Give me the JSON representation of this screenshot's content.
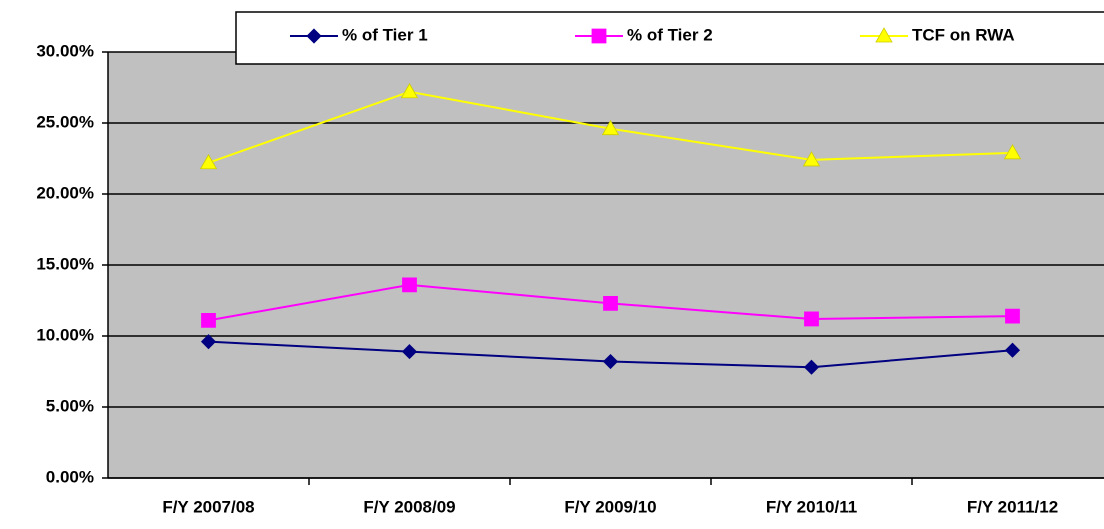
{
  "chart_data": {
    "type": "line",
    "categories": [
      "F/Y 2007/08",
      "F/Y 2008/09",
      "F/Y 2009/10",
      "F/Y 2010/11",
      "F/Y 2011/12"
    ],
    "series": [
      {
        "name": "% of Tier 1",
        "color": "#000080",
        "marker": "diamond",
        "values": [
          9.6,
          8.9,
          8.2,
          7.8,
          9.0
        ]
      },
      {
        "name": "% of Tier 2",
        "color": "#ff00ff",
        "marker": "square",
        "values": [
          11.1,
          13.6,
          12.3,
          11.2,
          11.4
        ]
      },
      {
        "name": "TCF on RWA",
        "color": "#ffff00",
        "marker": "triangle",
        "values": [
          22.2,
          27.2,
          24.6,
          22.4,
          22.9
        ]
      }
    ],
    "ylim": [
      0,
      30
    ],
    "yticks": [
      {
        "value": 0,
        "label": "0.00%"
      },
      {
        "value": 5,
        "label": "5.00%"
      },
      {
        "value": 10,
        "label": "10.00%"
      },
      {
        "value": 15,
        "label": "15.00%"
      },
      {
        "value": 20,
        "label": "20.00%"
      },
      {
        "value": 25,
        "label": "25.00%"
      },
      {
        "value": 30,
        "label": "30.00%"
      }
    ],
    "grid": true,
    "legend": "top"
  }
}
